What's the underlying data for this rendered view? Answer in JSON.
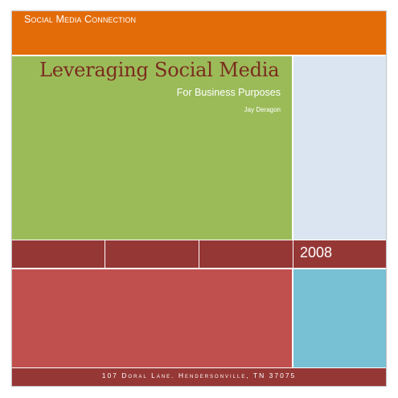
{
  "header": {
    "series_title": "Social Media Connection"
  },
  "cover": {
    "title": "Leveraging Social Media",
    "subtitle": "For Business Purposes",
    "author": "Jay Deragon",
    "year": "2008"
  },
  "footer": {
    "address": "107 Doral Lane. Hendersonville, TN 37075"
  },
  "colors": {
    "orange_band": "#e36c09",
    "green_panel": "#9bbb59",
    "light_blue_panel": "#dbe5f1",
    "maroon": "#953735",
    "red_panel": "#c0504d",
    "teal_panel": "#78c0d4",
    "title_text": "#7b2c1e"
  }
}
